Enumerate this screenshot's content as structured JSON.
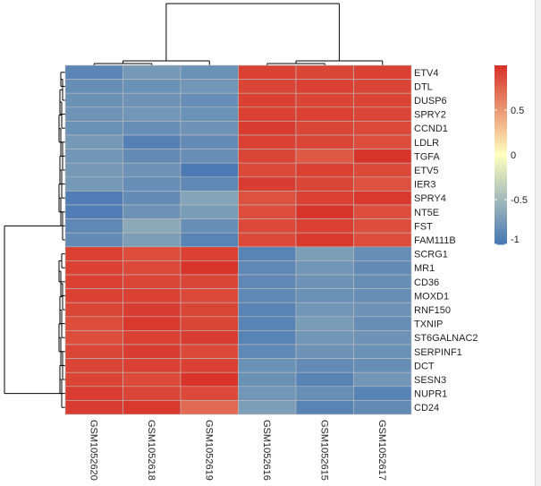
{
  "chart_data": {
    "type": "heatmap",
    "title": "",
    "row_labels": [
      "ETV4",
      "DTL",
      "DUSP6",
      "SPRY2",
      "CCND1",
      "LDLR",
      "TGFA",
      "ETV5",
      "IER3",
      "SPRY4",
      "NT5E",
      "FST",
      "FAM111B",
      "SCRG1",
      "MR1",
      "CD36",
      "MOXD1",
      "RNF150",
      "TXNIP",
      "ST6GALNAC2",
      "SERPINF1",
      "DCT",
      "SESN3",
      "NUPR1",
      "CD24"
    ],
    "col_labels": [
      "GSM1052620",
      "GSM1052618",
      "GSM1052619",
      "GSM1052616",
      "GSM1052615",
      "GSM1052617"
    ],
    "values": [
      [
        -0.88,
        -0.74,
        -0.8,
        0.92,
        0.9,
        0.92
      ],
      [
        -0.82,
        -0.8,
        -0.76,
        0.9,
        0.92,
        0.9
      ],
      [
        -0.8,
        -0.78,
        -0.82,
        0.92,
        0.9,
        0.9
      ],
      [
        -0.78,
        -0.76,
        -0.8,
        0.92,
        0.92,
        0.9
      ],
      [
        -0.8,
        -0.82,
        -0.78,
        0.94,
        0.9,
        0.88
      ],
      [
        -0.74,
        -0.92,
        -0.84,
        0.92,
        0.9,
        0.86
      ],
      [
        -0.76,
        -0.84,
        -0.82,
        0.9,
        0.8,
        0.98
      ],
      [
        -0.74,
        -0.78,
        -0.96,
        0.88,
        0.92,
        0.88
      ],
      [
        -0.74,
        -0.82,
        -0.86,
        0.94,
        0.9,
        0.84
      ],
      [
        -0.94,
        -0.84,
        -0.66,
        0.84,
        0.92,
        0.96
      ],
      [
        -0.94,
        -0.78,
        -0.72,
        0.86,
        0.98,
        0.86
      ],
      [
        -0.86,
        -0.62,
        -0.82,
        0.88,
        0.92,
        0.86
      ],
      [
        -0.84,
        -0.7,
        -0.9,
        0.88,
        0.96,
        0.86
      ],
      [
        0.92,
        0.86,
        0.92,
        -0.9,
        -0.7,
        -0.82
      ],
      [
        0.92,
        0.88,
        0.98,
        -0.86,
        -0.76,
        -0.84
      ],
      [
        0.92,
        0.9,
        0.9,
        -0.86,
        -0.78,
        -0.82
      ],
      [
        0.92,
        0.92,
        0.88,
        -0.86,
        -0.8,
        -0.82
      ],
      [
        0.9,
        0.94,
        0.9,
        -0.9,
        -0.76,
        -0.78
      ],
      [
        0.86,
        0.96,
        0.9,
        -0.9,
        -0.72,
        -0.82
      ],
      [
        0.86,
        0.92,
        0.94,
        -0.9,
        -0.76,
        -0.78
      ],
      [
        0.9,
        0.94,
        0.88,
        -0.86,
        -0.78,
        -0.8
      ],
      [
        0.9,
        0.92,
        0.92,
        -0.8,
        -0.84,
        -0.82
      ],
      [
        0.9,
        0.88,
        0.98,
        -0.8,
        -0.9,
        -0.76
      ],
      [
        0.94,
        0.9,
        0.88,
        -0.76,
        -0.82,
        -0.9
      ],
      [
        0.94,
        0.96,
        0.72,
        -0.7,
        -0.9,
        -0.84
      ]
    ],
    "legend": {
      "ticks": [
        0.5,
        0,
        -0.5,
        -1
      ],
      "tick_labels": [
        "0.5",
        "0",
        "-0.5",
        "-1"
      ],
      "range": [
        -1,
        1
      ],
      "placement": "right"
    },
    "colors": {
      "low": "#4575b4",
      "mid": "#ffffbf",
      "high": "#d73027",
      "grid": "#bdbdbd"
    },
    "row_dendrogram": "left",
    "col_dendrogram": "top"
  }
}
